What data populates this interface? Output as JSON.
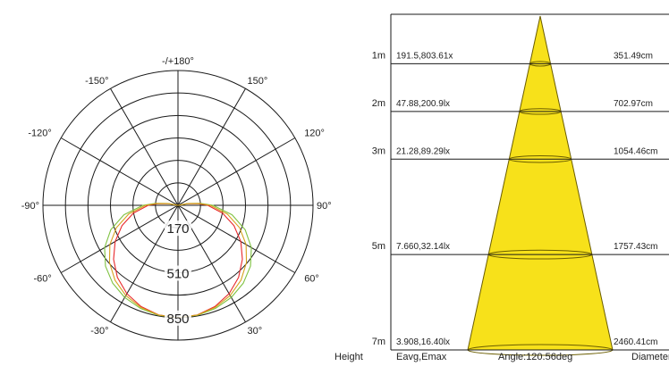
{
  "colors": {
    "grid": "#1a1a1a",
    "series_red": "#e8282b",
    "series_green": "#7fc241",
    "series_orange": "#d6a21d",
    "cone_fill": "#f7e11a",
    "cone_stroke": "#6b5d00",
    "text": "#222222"
  },
  "chart_data": [
    {
      "type": "polar",
      "angle_labels": [
        {
          "deg": 180,
          "label": "-/+180°"
        },
        {
          "deg": 150,
          "label": "150°"
        },
        {
          "deg": 120,
          "label": "120°"
        },
        {
          "deg": 90,
          "label": "90°"
        },
        {
          "deg": 60,
          "label": "60°"
        },
        {
          "deg": 30,
          "label": "30°"
        },
        {
          "deg": -30,
          "label": "-30°"
        },
        {
          "deg": -60,
          "label": "-60°"
        },
        {
          "deg": -90,
          "label": "-90°"
        },
        {
          "deg": -120,
          "label": "-120°"
        },
        {
          "deg": -150,
          "label": "-150°"
        }
      ],
      "radial_max": 1020,
      "ring_values": [
        170,
        340,
        510,
        680,
        850,
        1020
      ],
      "radial_labels": [
        "170",
        "510",
        "850"
      ],
      "spoke_step_deg": 30,
      "series": [
        {
          "color_key": "series_red",
          "points": [
            [
              0,
              850
            ],
            [
              10,
              842
            ],
            [
              20,
              815
            ],
            [
              30,
              772
            ],
            [
              40,
              712
            ],
            [
              50,
              635
            ],
            [
              60,
              548
            ],
            [
              70,
              450
            ],
            [
              80,
              342
            ],
            [
              90,
              225
            ],
            [
              95,
              150
            ],
            [
              100,
              70
            ],
            [
              105,
              0
            ]
          ]
        },
        {
          "color_key": "series_green",
          "points": [
            [
              0,
              850
            ],
            [
              10,
              845
            ],
            [
              20,
              830
            ],
            [
              30,
              805
            ],
            [
              40,
              768
            ],
            [
              50,
              715
            ],
            [
              60,
              640
            ],
            [
              70,
              540
            ],
            [
              80,
              415
            ],
            [
              90,
              265
            ],
            [
              95,
              170
            ],
            [
              100,
              80
            ],
            [
              105,
              0
            ]
          ]
        },
        {
          "color_key": "series_orange",
          "points": [
            [
              0,
              850
            ],
            [
              10,
              843
            ],
            [
              20,
              822
            ],
            [
              30,
              788
            ],
            [
              40,
              740
            ],
            [
              50,
              675
            ],
            [
              60,
              594
            ],
            [
              70,
              495
            ],
            [
              80,
              378
            ],
            [
              90,
              245
            ],
            [
              95,
              160
            ],
            [
              100,
              75
            ],
            [
              105,
              0
            ]
          ]
        }
      ]
    },
    {
      "type": "table",
      "beam_angle_deg": 120.56,
      "max_height_m": 7,
      "columns": [
        "Height",
        "Eavg,Emax",
        "Angle:120.56deg",
        "Diameter"
      ],
      "rows": [
        {
          "height": "1m",
          "height_m": 1,
          "illuminance": "191.5,803.61x",
          "diameter": "351.49cm"
        },
        {
          "height": "2m",
          "height_m": 2,
          "illuminance": "47.88,200.9lx",
          "diameter": "702.97cm"
        },
        {
          "height": "3m",
          "height_m": 3,
          "illuminance": "21.28,89.29lx",
          "diameter": "1054.46cm"
        },
        {
          "height": "5m",
          "height_m": 5,
          "illuminance": "7.660,32.14lx",
          "diameter": "1757.43cm"
        },
        {
          "height": "7m",
          "height_m": 7,
          "illuminance": "3.908,16.40lx",
          "diameter": "2460.41cm"
        }
      ]
    }
  ]
}
